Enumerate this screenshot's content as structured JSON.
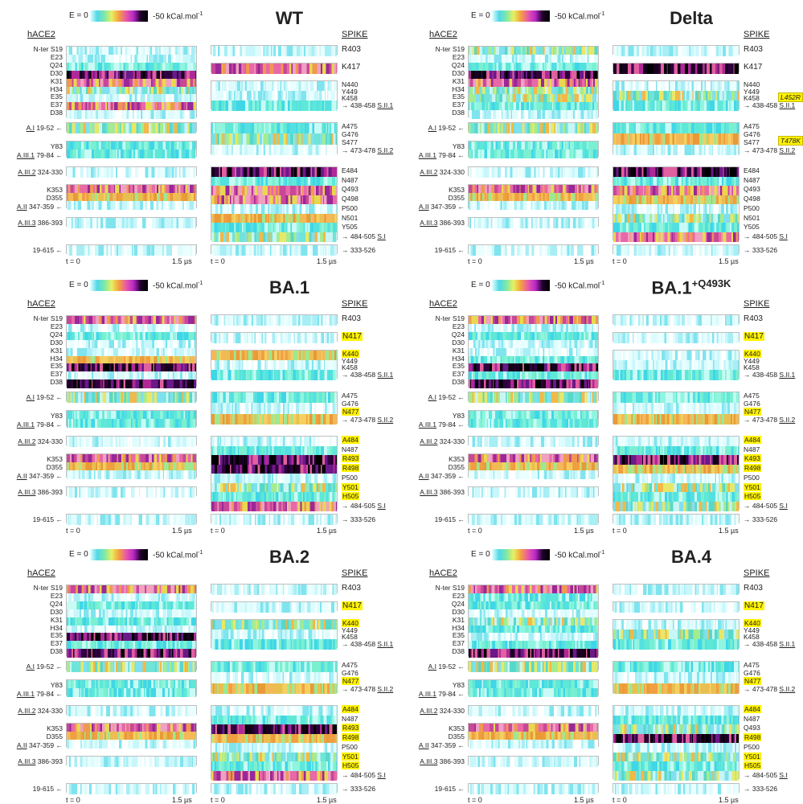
{
  "colorbar": {
    "left_label": "E = 0",
    "right_label": "-50 kCal.mol",
    "right_sup": "-1"
  },
  "headers": {
    "left": "hACE2",
    "right": "SPIKE"
  },
  "time_axis": {
    "start": "t = 0",
    "end": "1.5 µs"
  },
  "ace2_labels": [
    "N-ter S19",
    "E23",
    "Q24",
    "D30",
    "K31",
    "H34",
    "E35",
    "E37",
    "D38"
  ],
  "ace2_groups": [
    {
      "u": "A.I",
      "rest": " 19-52 ←"
    },
    {
      "u": "",
      "rest": "Y83"
    },
    {
      "u": "A.III.1",
      "rest": " 79-84 ←"
    },
    {
      "u": "A.III.2",
      "rest": " 324-330"
    },
    {
      "u": "",
      "rest": "K353"
    },
    {
      "u": "",
      "rest": "D355"
    },
    {
      "u": "A.II",
      "rest": " 347-359 ←"
    },
    {
      "u": "A.III.3",
      "rest": " 386-393"
    },
    {
      "u": "",
      "rest": "19-615 ←"
    }
  ],
  "spike_group_labels": {
    "g1": {
      "pre": "→ 438-458 ",
      "u": "S.II.1"
    },
    "g2": {
      "pre": "→ 473-478 ",
      "u": "S.II.2"
    },
    "g3": {
      "pre": "→ 484-505 ",
      "u": "S.I"
    },
    "g4": {
      "pre": "→ 333-526",
      "u": ""
    }
  },
  "panels": [
    {
      "title": "WT",
      "sup": "",
      "spike": [
        "R403",
        "K417",
        "N440",
        "Y449",
        "K458",
        "A475",
        "G476",
        "S477",
        "E484",
        "N487",
        "Q493",
        "Q498",
        "P500",
        "N501",
        "Y505"
      ],
      "highlight": [],
      "extra": []
    },
    {
      "title": "Delta",
      "sup": "",
      "spike": [
        "R403",
        "K417",
        "N440",
        "Y449",
        "K458",
        "A475",
        "G476",
        "S477",
        "E484",
        "N487",
        "Q493",
        "Q498",
        "P500",
        "N501",
        "Y505"
      ],
      "highlight": [],
      "extra": [
        "L452R",
        "T478K"
      ]
    },
    {
      "title": "BA.1",
      "sup": "",
      "spike": [
        "R403",
        "N417",
        "K440",
        "Y449",
        "K458",
        "A475",
        "G476",
        "N477",
        "A484",
        "N487",
        "R493",
        "R498",
        "P500",
        "Y501",
        "H505"
      ],
      "highlight": [
        "N417",
        "K440",
        "N477",
        "A484",
        "R493",
        "R498",
        "Y501",
        "H505"
      ],
      "extra": []
    },
    {
      "title": "BA.1",
      "sup": "+Q493K",
      "spike": [
        "R403",
        "N417",
        "K440",
        "Y449",
        "K458",
        "A475",
        "G476",
        "N477",
        "A484",
        "N487",
        "K493",
        "R498",
        "P500",
        "Y501",
        "H505"
      ],
      "highlight": [
        "N417",
        "K440",
        "N477",
        "A484",
        "K493",
        "R498",
        "Y501",
        "H505"
      ],
      "extra": []
    },
    {
      "title": "BA.2",
      "sup": "",
      "spike": [
        "R403",
        "N417",
        "K440",
        "Y449",
        "K458",
        "A475",
        "G476",
        "N477",
        "A484",
        "N487",
        "R493",
        "R498",
        "P500",
        "Y501",
        "H505"
      ],
      "highlight": [
        "N417",
        "K440",
        "N477",
        "A484",
        "R493",
        "R498",
        "Y501",
        "H505"
      ],
      "extra": []
    },
    {
      "title": "BA.4",
      "sup": "",
      "spike": [
        "R403",
        "N417",
        "K440",
        "Y449",
        "K458",
        "A475",
        "G476",
        "N477",
        "A484",
        "N487",
        "Q493",
        "R498",
        "P500",
        "Y501",
        "H505"
      ],
      "highlight": [
        "N417",
        "K440",
        "N477",
        "A484",
        "R498",
        "Y501",
        "H505"
      ],
      "extra": []
    }
  ]
}
